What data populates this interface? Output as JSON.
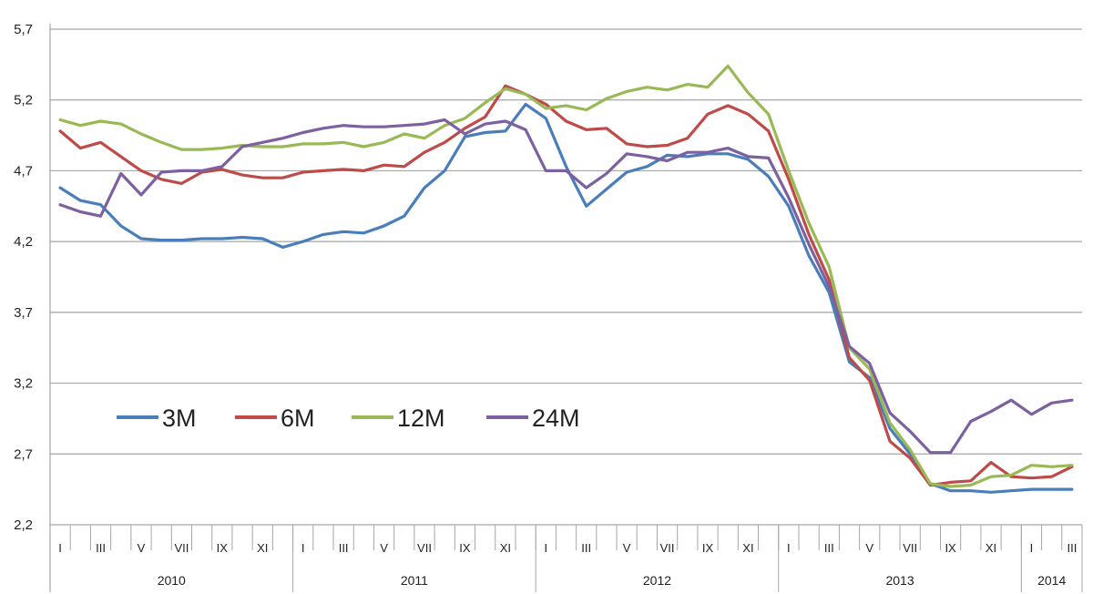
{
  "chart_data": {
    "type": "line",
    "title": "",
    "xlabel": "",
    "ylabel": "",
    "ylim": [
      2.2,
      5.7
    ],
    "y_ticks": [
      "2,2",
      "2,7",
      "3,2",
      "3,7",
      "4,2",
      "4,7",
      "5,2",
      "5,7"
    ],
    "grid": "horizontal",
    "legend_position": "lower-left",
    "month_labels": [
      "I",
      "III",
      "V",
      "VII",
      "IX",
      "XI",
      "I",
      "III",
      "V",
      "VII",
      "IX",
      "XI",
      "I",
      "III",
      "V",
      "VII",
      "IX",
      "XI",
      "I",
      "III",
      "V",
      "VII",
      "IX",
      "XI",
      "I",
      "III"
    ],
    "year_labels": [
      "2010",
      "2011",
      "2012",
      "2013",
      "2014"
    ],
    "x_months": [
      "2010-01",
      "2010-02",
      "2010-03",
      "2010-04",
      "2010-05",
      "2010-06",
      "2010-07",
      "2010-08",
      "2010-09",
      "2010-10",
      "2010-11",
      "2010-12",
      "2011-01",
      "2011-02",
      "2011-03",
      "2011-04",
      "2011-05",
      "2011-06",
      "2011-07",
      "2011-08",
      "2011-09",
      "2011-10",
      "2011-11",
      "2011-12",
      "2012-01",
      "2012-02",
      "2012-03",
      "2012-04",
      "2012-05",
      "2012-06",
      "2012-07",
      "2012-08",
      "2012-09",
      "2012-10",
      "2012-11",
      "2012-12",
      "2013-01",
      "2013-02",
      "2013-03",
      "2013-04",
      "2013-05",
      "2013-06",
      "2013-07",
      "2013-08",
      "2013-09",
      "2013-10",
      "2013-11",
      "2013-12",
      "2014-01",
      "2014-02",
      "2014-03"
    ],
    "series": [
      {
        "name": "3M",
        "color": "#4a7ebb",
        "values": [
          4.58,
          4.49,
          4.46,
          4.31,
          4.22,
          4.21,
          4.21,
          4.22,
          4.22,
          4.23,
          4.22,
          4.16,
          4.2,
          4.25,
          4.27,
          4.26,
          4.31,
          4.38,
          4.58,
          4.7,
          4.94,
          4.97,
          4.98,
          5.17,
          5.07,
          4.73,
          4.45,
          4.57,
          4.69,
          4.73,
          4.81,
          4.8,
          4.82,
          4.82,
          4.78,
          4.66,
          4.45,
          4.1,
          3.84,
          3.35,
          3.24,
          2.88,
          2.7,
          2.49,
          2.44,
          2.44,
          2.43,
          2.44,
          2.45,
          2.45,
          2.45
        ]
      },
      {
        "name": "6M",
        "color": "#be4b48",
        "values": [
          4.98,
          4.86,
          4.9,
          4.8,
          4.7,
          4.64,
          4.61,
          4.69,
          4.71,
          4.67,
          4.65,
          4.65,
          4.69,
          4.7,
          4.71,
          4.7,
          4.74,
          4.73,
          4.83,
          4.9,
          5.0,
          5.08,
          5.3,
          5.24,
          5.17,
          5.05,
          4.99,
          5.0,
          4.89,
          4.87,
          4.88,
          4.93,
          5.1,
          5.16,
          5.1,
          4.98,
          4.64,
          4.25,
          3.93,
          3.38,
          3.22,
          2.79,
          2.67,
          2.48,
          2.5,
          2.51,
          2.64,
          2.54,
          2.53,
          2.54,
          2.61
        ]
      },
      {
        "name": "12M",
        "color": "#98b954",
        "values": [
          5.06,
          5.02,
          5.05,
          5.03,
          4.96,
          4.9,
          4.85,
          4.85,
          4.86,
          4.88,
          4.87,
          4.87,
          4.89,
          4.89,
          4.9,
          4.87,
          4.9,
          4.96,
          4.93,
          5.02,
          5.07,
          5.18,
          5.28,
          5.24,
          5.14,
          5.16,
          5.13,
          5.21,
          5.26,
          5.29,
          5.27,
          5.31,
          5.29,
          5.44,
          5.25,
          5.1,
          4.7,
          4.33,
          4.02,
          3.45,
          3.3,
          2.92,
          2.73,
          2.49,
          2.47,
          2.48,
          2.54,
          2.55,
          2.62,
          2.61,
          2.62
        ]
      },
      {
        "name": "24M",
        "color": "#7d60a0",
        "values": [
          4.46,
          4.41,
          4.38,
          4.68,
          4.53,
          4.69,
          4.7,
          4.7,
          4.73,
          4.87,
          4.9,
          4.93,
          4.97,
          5.0,
          5.02,
          5.01,
          5.01,
          5.02,
          5.03,
          5.06,
          4.96,
          5.03,
          5.05,
          4.99,
          4.7,
          4.7,
          4.58,
          4.68,
          4.82,
          4.8,
          4.77,
          4.83,
          4.83,
          4.86,
          4.8,
          4.79,
          4.51,
          4.18,
          3.88,
          3.46,
          3.34,
          2.99,
          2.86,
          2.71,
          2.71,
          2.93,
          3.0,
          3.08,
          2.98,
          3.06,
          3.08
        ]
      }
    ]
  }
}
